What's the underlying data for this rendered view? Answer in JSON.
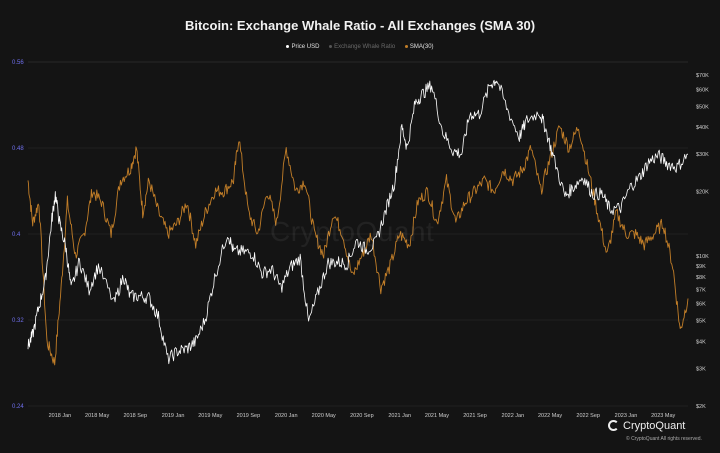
{
  "chart_data": {
    "type": "line",
    "title": "Bitcoin: Exchange Whale Ratio - All Exchanges (SMA 30)",
    "legend": [
      {
        "name": "Price USD",
        "color": "#ffffff"
      },
      {
        "name": "Exchange Whale Ratio",
        "color": "#555555"
      },
      {
        "name": "SMA(30)",
        "color": "#c27e28"
      }
    ],
    "legend_position": "top-center",
    "watermark": "CryptoQuant",
    "x_ticks": [
      "2018 Jan",
      "2018 May",
      "2018 Sep",
      "2019 Jan",
      "2019 May",
      "2019 Sep",
      "2020 Jan",
      "2020 May",
      "2020 Sep",
      "2021 Jan",
      "2021 May",
      "2021 Sep",
      "2022 Jan",
      "2022 May",
      "2022 Sep",
      "2023 Jan",
      "2023 May"
    ],
    "left_axis": {
      "ticks": [
        "0.56",
        "0.48",
        "0.4",
        "0.32",
        "0.24"
      ],
      "range": [
        0.24,
        0.56
      ],
      "color": "#7070ee"
    },
    "right_axis": {
      "scale": "log",
      "ticks": [
        "$70K",
        "$60K",
        "$50K",
        "$40K",
        "$30K",
        "$20K",
        "$10K",
        "$9K",
        "$8K",
        "$7K",
        "$6K",
        "$5K",
        "$4K",
        "$3K",
        "$2K"
      ],
      "range": [
        2000,
        70000
      ]
    },
    "x_range": [
      "2017-09-20",
      "2023-07-20"
    ],
    "grid": true,
    "series": [
      {
        "name": "Price USD",
        "axis": "right",
        "x": [
          "2017-09-20",
          "2017-10-05",
          "2017-10-25",
          "2017-11-15",
          "2017-12-05",
          "2017-12-17",
          "2018-01-01",
          "2018-01-20",
          "2018-02-06",
          "2018-03-05",
          "2018-04-05",
          "2018-05-05",
          "2018-06-25",
          "2018-07-25",
          "2018-08-15",
          "2018-09-15",
          "2018-10-15",
          "2018-11-15",
          "2018-12-15",
          "2019-01-15",
          "2019-02-15",
          "2019-03-15",
          "2019-04-15",
          "2019-05-15",
          "2019-06-26",
          "2019-07-15",
          "2019-08-15",
          "2019-09-15",
          "2019-10-15",
          "2019-11-15",
          "2019-12-15",
          "2020-01-15",
          "2020-02-15",
          "2020-03-13",
          "2020-04-15",
          "2020-05-15",
          "2020-06-15",
          "2020-07-15",
          "2020-08-15",
          "2020-09-15",
          "2020-10-15",
          "2020-11-15",
          "2020-12-15",
          "2021-01-08",
          "2021-01-25",
          "2021-02-20",
          "2021-03-15",
          "2021-04-14",
          "2021-05-20",
          "2021-06-22",
          "2021-07-20",
          "2021-08-15",
          "2021-09-15",
          "2021-10-20",
          "2021-11-10",
          "2021-12-15",
          "2022-01-22",
          "2022-02-15",
          "2022-03-28",
          "2022-04-15",
          "2022-05-12",
          "2022-06-18",
          "2022-07-15",
          "2022-08-15",
          "2022-09-15",
          "2022-10-15",
          "2022-11-10",
          "2022-12-15",
          "2023-01-15",
          "2023-02-15",
          "2023-03-15",
          "2023-04-15",
          "2023-05-15",
          "2023-06-15",
          "2023-07-20"
        ],
        "values": [
          3800,
          4300,
          5800,
          7800,
          14500,
          19500,
          14000,
          11000,
          7000,
          9500,
          7000,
          9000,
          6000,
          8100,
          6500,
          6500,
          6400,
          5200,
          3300,
          3600,
          3700,
          4000,
          5100,
          7900,
          12900,
          10500,
          10500,
          10300,
          8300,
          8700,
          7100,
          8900,
          9800,
          4900,
          6900,
          9300,
          9400,
          9200,
          11800,
          10700,
          11500,
          16000,
          22000,
          40000,
          32000,
          52000,
          57000,
          63000,
          38000,
          31000,
          30000,
          46000,
          46000,
          63000,
          67000,
          48000,
          36000,
          43000,
          47000,
          40000,
          29000,
          19000,
          21000,
          23500,
          19500,
          19500,
          16500,
          16800,
          21000,
          23500,
          27500,
          29500,
          27000,
          26000,
          29900
        ]
      },
      {
        "name": "SMA(30)",
        "axis": "left",
        "x": [
          "2017-09-20",
          "2017-10-05",
          "2017-10-25",
          "2017-11-20",
          "2017-12-15",
          "2018-01-05",
          "2018-01-25",
          "2018-02-20",
          "2018-03-20",
          "2018-04-15",
          "2018-05-15",
          "2018-06-15",
          "2018-07-15",
          "2018-08-15",
          "2018-09-05",
          "2018-09-25",
          "2018-10-15",
          "2018-11-15",
          "2018-12-15",
          "2019-01-15",
          "2019-02-15",
          "2019-03-15",
          "2019-04-15",
          "2019-05-15",
          "2019-06-15",
          "2019-07-15",
          "2019-08-01",
          "2019-09-01",
          "2019-10-01",
          "2019-11-01",
          "2019-12-01",
          "2020-01-01",
          "2020-02-01",
          "2020-03-01",
          "2020-04-01",
          "2020-05-01",
          "2020-06-01",
          "2020-07-01",
          "2020-08-01",
          "2020-09-01",
          "2020-10-01",
          "2020-11-01",
          "2020-12-01",
          "2021-01-01",
          "2021-02-01",
          "2021-03-01",
          "2021-04-01",
          "2021-05-01",
          "2021-06-01",
          "2021-07-01",
          "2021-08-01",
          "2021-09-01",
          "2021-10-01",
          "2021-11-01",
          "2021-12-01",
          "2022-01-01",
          "2022-02-01",
          "2022-03-01",
          "2022-04-01",
          "2022-05-01",
          "2022-06-01",
          "2022-07-01",
          "2022-08-01",
          "2022-09-01",
          "2022-10-01",
          "2022-11-01",
          "2022-12-01",
          "2023-01-01",
          "2023-02-01",
          "2023-03-01",
          "2023-04-01",
          "2023-05-01",
          "2023-06-01",
          "2023-06-25",
          "2023-07-20"
        ],
        "values": [
          0.45,
          0.41,
          0.43,
          0.3,
          0.28,
          0.35,
          0.43,
          0.38,
          0.4,
          0.44,
          0.43,
          0.4,
          0.45,
          0.46,
          0.48,
          0.42,
          0.45,
          0.42,
          0.4,
          0.41,
          0.43,
          0.39,
          0.42,
          0.44,
          0.44,
          0.45,
          0.49,
          0.42,
          0.4,
          0.44,
          0.41,
          0.48,
          0.44,
          0.45,
          0.4,
          0.38,
          0.42,
          0.4,
          0.36,
          0.38,
          0.4,
          0.35,
          0.37,
          0.4,
          0.39,
          0.43,
          0.44,
          0.41,
          0.45,
          0.41,
          0.43,
          0.44,
          0.45,
          0.44,
          0.46,
          0.45,
          0.46,
          0.48,
          0.44,
          0.47,
          0.5,
          0.48,
          0.5,
          0.46,
          0.42,
          0.38,
          0.42,
          0.4,
          0.4,
          0.39,
          0.4,
          0.41,
          0.37,
          0.31,
          0.34
        ]
      }
    ]
  },
  "footer": {
    "brand": "CryptoQuant",
    "copyright": "© CryptoQuant All rights reserved."
  }
}
